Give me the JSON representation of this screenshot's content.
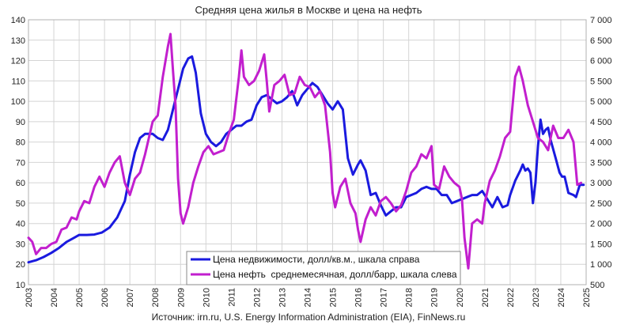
{
  "chart_data": {
    "type": "line",
    "title": "Средняя цена жилья в Москве и цена на нефть",
    "source": "Источник: irn.ru, U.S. Energy Information Administration (EIA), FinNews.ru",
    "xlim": [
      2003,
      2025
    ],
    "x_ticks": [
      "2003",
      "2004",
      "2005",
      "2006",
      "2007",
      "2008",
      "2009",
      "2010",
      "2011",
      "2012",
      "2013",
      "2014",
      "2015",
      "2016",
      "2017",
      "2018",
      "2019",
      "2020",
      "2021",
      "2022",
      "2023",
      "2024",
      "2025"
    ],
    "y_left": {
      "lim": [
        10,
        140
      ],
      "ticks": [
        "10",
        "20",
        "30",
        "40",
        "50",
        "60",
        "70",
        "80",
        "90",
        "100",
        "110",
        "120",
        "130",
        "140"
      ]
    },
    "y_right": {
      "lim": [
        500,
        7000
      ],
      "ticks": [
        "500",
        "1 000",
        "1 500",
        "2 000",
        "2 500",
        "3 000",
        "3 500",
        "4 000",
        "4 500",
        "5 000",
        "5 500",
        "6 000",
        "6 500",
        "7 000"
      ]
    },
    "grid": true,
    "legend_position": "bottom-center",
    "series": [
      {
        "name": "Цена недвижимости, долл/кв.м., шкала справа",
        "color": "#1a1adf",
        "axis": "right",
        "points": [
          [
            2003.0,
            1050
          ],
          [
            2003.3,
            1100
          ],
          [
            2003.6,
            1180
          ],
          [
            2003.9,
            1280
          ],
          [
            2004.2,
            1400
          ],
          [
            2004.5,
            1550
          ],
          [
            2004.8,
            1650
          ],
          [
            2005.0,
            1720
          ],
          [
            2005.3,
            1720
          ],
          [
            2005.6,
            1730
          ],
          [
            2005.9,
            1780
          ],
          [
            2006.2,
            1900
          ],
          [
            2006.5,
            2150
          ],
          [
            2006.8,
            2550
          ],
          [
            2007.0,
            3200
          ],
          [
            2007.2,
            3750
          ],
          [
            2007.4,
            4100
          ],
          [
            2007.6,
            4200
          ],
          [
            2007.9,
            4200
          ],
          [
            2008.1,
            4100
          ],
          [
            2008.3,
            4050
          ],
          [
            2008.5,
            4300
          ],
          [
            2008.7,
            4800
          ],
          [
            2008.9,
            5300
          ],
          [
            2009.1,
            5800
          ],
          [
            2009.3,
            6050
          ],
          [
            2009.45,
            6100
          ],
          [
            2009.6,
            5700
          ],
          [
            2009.8,
            4700
          ],
          [
            2010.0,
            4200
          ],
          [
            2010.2,
            4000
          ],
          [
            2010.4,
            3900
          ],
          [
            2010.6,
            4000
          ],
          [
            2010.8,
            4200
          ],
          [
            2011.0,
            4300
          ],
          [
            2011.2,
            4400
          ],
          [
            2011.4,
            4400
          ],
          [
            2011.6,
            4500
          ],
          [
            2011.8,
            4550
          ],
          [
            2012.0,
            4900
          ],
          [
            2012.2,
            5100
          ],
          [
            2012.4,
            5150
          ],
          [
            2012.6,
            5050
          ],
          [
            2012.8,
            4950
          ],
          [
            2013.0,
            5000
          ],
          [
            2013.2,
            5100
          ],
          [
            2013.4,
            5250
          ],
          [
            2013.6,
            4900
          ],
          [
            2013.8,
            5150
          ],
          [
            2014.0,
            5300
          ],
          [
            2014.2,
            5450
          ],
          [
            2014.4,
            5350
          ],
          [
            2014.6,
            5150
          ],
          [
            2014.8,
            4950
          ],
          [
            2015.0,
            4800
          ],
          [
            2015.2,
            5000
          ],
          [
            2015.4,
            4800
          ],
          [
            2015.6,
            3600
          ],
          [
            2015.8,
            3200
          ],
          [
            2016.0,
            3450
          ],
          [
            2016.1,
            3550
          ],
          [
            2016.3,
            3300
          ],
          [
            2016.5,
            2700
          ],
          [
            2016.7,
            2750
          ],
          [
            2016.9,
            2450
          ],
          [
            2017.1,
            2200
          ],
          [
            2017.3,
            2300
          ],
          [
            2017.5,
            2400
          ],
          [
            2017.7,
            2400
          ],
          [
            2017.9,
            2650
          ],
          [
            2018.1,
            2700
          ],
          [
            2018.3,
            2750
          ],
          [
            2018.5,
            2850
          ],
          [
            2018.7,
            2900
          ],
          [
            2018.9,
            2850
          ],
          [
            2019.1,
            2850
          ],
          [
            2019.3,
            2700
          ],
          [
            2019.5,
            2700
          ],
          [
            2019.7,
            2500
          ],
          [
            2019.9,
            2550
          ],
          [
            2020.1,
            2600
          ],
          [
            2020.3,
            2650
          ],
          [
            2020.5,
            2700
          ],
          [
            2020.7,
            2700
          ],
          [
            2020.9,
            2800
          ],
          [
            2021.0,
            2700
          ],
          [
            2021.1,
            2600
          ],
          [
            2021.3,
            2400
          ],
          [
            2021.5,
            2650
          ],
          [
            2021.7,
            2400
          ],
          [
            2021.9,
            2450
          ],
          [
            2022.0,
            2700
          ],
          [
            2022.2,
            3050
          ],
          [
            2022.4,
            3300
          ],
          [
            2022.5,
            3450
          ],
          [
            2022.6,
            3300
          ],
          [
            2022.7,
            3350
          ],
          [
            2022.8,
            3250
          ],
          [
            2022.9,
            2500
          ],
          [
            2023.0,
            3000
          ],
          [
            2023.1,
            3900
          ],
          [
            2023.2,
            4550
          ],
          [
            2023.3,
            4200
          ],
          [
            2023.4,
            4300
          ],
          [
            2023.5,
            4350
          ],
          [
            2023.6,
            4050
          ],
          [
            2023.8,
            3600
          ],
          [
            2023.95,
            3250
          ],
          [
            2024.05,
            3150
          ],
          [
            2024.15,
            3150
          ],
          [
            2024.3,
            2750
          ],
          [
            2024.5,
            2700
          ],
          [
            2024.6,
            2650
          ],
          [
            2024.75,
            2950
          ],
          [
            2024.9,
            2950
          ]
        ]
      },
      {
        "name": "Цена нефть  среднемесячная, долл/барр, шкала слева",
        "color": "#c21fce",
        "axis": "left",
        "points": [
          [
            2003.0,
            33
          ],
          [
            2003.15,
            31
          ],
          [
            2003.3,
            25
          ],
          [
            2003.5,
            28
          ],
          [
            2003.7,
            28
          ],
          [
            2003.9,
            30
          ],
          [
            2004.1,
            31
          ],
          [
            2004.3,
            37
          ],
          [
            2004.5,
            38
          ],
          [
            2004.7,
            43
          ],
          [
            2004.9,
            42
          ],
          [
            2005.0,
            46
          ],
          [
            2005.2,
            51
          ],
          [
            2005.4,
            50
          ],
          [
            2005.6,
            58
          ],
          [
            2005.8,
            63
          ],
          [
            2006.0,
            58
          ],
          [
            2006.2,
            65
          ],
          [
            2006.4,
            70
          ],
          [
            2006.6,
            73
          ],
          [
            2006.8,
            60
          ],
          [
            2007.0,
            54
          ],
          [
            2007.2,
            62
          ],
          [
            2007.4,
            65
          ],
          [
            2007.6,
            74
          ],
          [
            2007.9,
            90
          ],
          [
            2008.1,
            93
          ],
          [
            2008.3,
            112
          ],
          [
            2008.5,
            127
          ],
          [
            2008.6,
            133
          ],
          [
            2008.7,
            115
          ],
          [
            2008.8,
            98
          ],
          [
            2008.9,
            62
          ],
          [
            2009.0,
            45
          ],
          [
            2009.1,
            40
          ],
          [
            2009.3,
            48
          ],
          [
            2009.5,
            60
          ],
          [
            2009.7,
            68
          ],
          [
            2009.9,
            75
          ],
          [
            2010.1,
            78
          ],
          [
            2010.3,
            74
          ],
          [
            2010.5,
            75
          ],
          [
            2010.7,
            76
          ],
          [
            2010.9,
            84
          ],
          [
            2011.1,
            91
          ],
          [
            2011.3,
            112
          ],
          [
            2011.4,
            125
          ],
          [
            2011.5,
            112
          ],
          [
            2011.7,
            108
          ],
          [
            2011.9,
            110
          ],
          [
            2012.1,
            115
          ],
          [
            2012.3,
            123
          ],
          [
            2012.4,
            110
          ],
          [
            2012.5,
            95
          ],
          [
            2012.7,
            108
          ],
          [
            2012.9,
            110
          ],
          [
            2013.1,
            113
          ],
          [
            2013.3,
            103
          ],
          [
            2013.5,
            104
          ],
          [
            2013.7,
            112
          ],
          [
            2013.9,
            108
          ],
          [
            2014.1,
            107
          ],
          [
            2014.3,
            102
          ],
          [
            2014.5,
            105
          ],
          [
            2014.7,
            98
          ],
          [
            2014.9,
            75
          ],
          [
            2015.0,
            55
          ],
          [
            2015.1,
            48
          ],
          [
            2015.3,
            58
          ],
          [
            2015.5,
            62
          ],
          [
            2015.7,
            50
          ],
          [
            2015.9,
            45
          ],
          [
            2016.0,
            37
          ],
          [
            2016.1,
            31
          ],
          [
            2016.3,
            42
          ],
          [
            2016.5,
            48
          ],
          [
            2016.7,
            44
          ],
          [
            2016.9,
            51
          ],
          [
            2017.1,
            53
          ],
          [
            2017.3,
            50
          ],
          [
            2017.5,
            46
          ],
          [
            2017.7,
            49
          ],
          [
            2017.9,
            56
          ],
          [
            2018.1,
            65
          ],
          [
            2018.3,
            68
          ],
          [
            2018.5,
            74
          ],
          [
            2018.7,
            72
          ],
          [
            2018.9,
            78
          ],
          [
            2019.0,
            59
          ],
          [
            2019.2,
            57
          ],
          [
            2019.4,
            68
          ],
          [
            2019.6,
            63
          ],
          [
            2019.8,
            60
          ],
          [
            2020.0,
            58
          ],
          [
            2020.1,
            52
          ],
          [
            2020.2,
            33
          ],
          [
            2020.35,
            18
          ],
          [
            2020.5,
            40
          ],
          [
            2020.7,
            42
          ],
          [
            2020.9,
            40
          ],
          [
            2021.0,
            50
          ],
          [
            2021.2,
            61
          ],
          [
            2021.4,
            66
          ],
          [
            2021.6,
            73
          ],
          [
            2021.8,
            82
          ],
          [
            2022.0,
            85
          ],
          [
            2022.2,
            112
          ],
          [
            2022.35,
            117
          ],
          [
            2022.5,
            110
          ],
          [
            2022.7,
            98
          ],
          [
            2022.9,
            90
          ],
          [
            2023.1,
            82
          ],
          [
            2023.3,
            80
          ],
          [
            2023.5,
            76
          ],
          [
            2023.7,
            88
          ],
          [
            2023.9,
            82
          ],
          [
            2024.1,
            82
          ],
          [
            2024.3,
            86
          ],
          [
            2024.5,
            80
          ],
          [
            2024.65,
            59
          ],
          [
            2024.8,
            60
          ]
        ]
      }
    ]
  }
}
